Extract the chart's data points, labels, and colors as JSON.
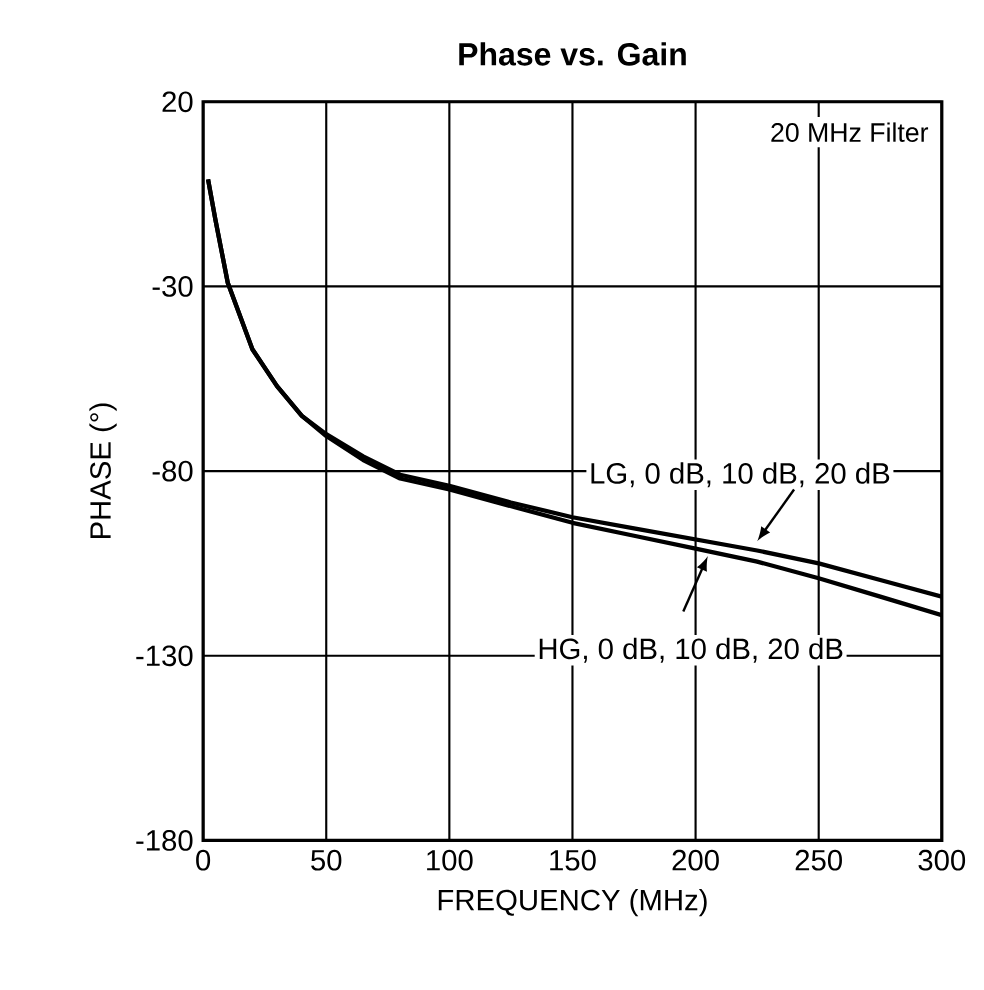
{
  "chart_data": {
    "type": "line",
    "title": "Phase vs. Gain",
    "xlabel": "FREQUENCY (MHz)",
    "ylabel": "PHASE (°)",
    "xlim": [
      0,
      300
    ],
    "xticks": [
      0,
      50,
      100,
      150,
      200,
      250,
      300
    ],
    "ylim": [
      -180,
      20
    ],
    "yticks": [
      -180,
      -130,
      -80,
      -30,
      20
    ],
    "grid": true,
    "series": [
      {
        "color": "#000000",
        "x": [
          2,
          5,
          10,
          20,
          30,
          40,
          50,
          65,
          80,
          100,
          125,
          150,
          175,
          200,
          225,
          250,
          275,
          300
        ],
        "values": [
          -1,
          -12,
          -29,
          -47,
          -57,
          -65,
          -70,
          -76,
          -81,
          -84,
          -88.5,
          -92.5,
          -95.5,
          -98.5,
          -101.5,
          -105,
          -109.5,
          -114
        ]
      },
      {
        "color": "#000000",
        "x": [
          2,
          5,
          10,
          20,
          30,
          40,
          50,
          65,
          80,
          100,
          125,
          150,
          175,
          200,
          225,
          250,
          275,
          300
        ],
        "values": [
          -1,
          -12,
          -29,
          -47,
          -57,
          -65,
          -70.5,
          -77,
          -82,
          -85,
          -89.5,
          -94,
          -97.5,
          -101,
          -104.5,
          -109,
          -114,
          -119
        ]
      }
    ],
    "annotations": [
      "20 MHz Filter",
      {
        "text": "LG, 0 dB, 10 dB, 20 dB",
        "x": 225,
        "y": -99
      },
      {
        "text": "HG, 0 dB, 10 dB, 20 dB",
        "x": 205,
        "y": -103
      }
    ]
  }
}
